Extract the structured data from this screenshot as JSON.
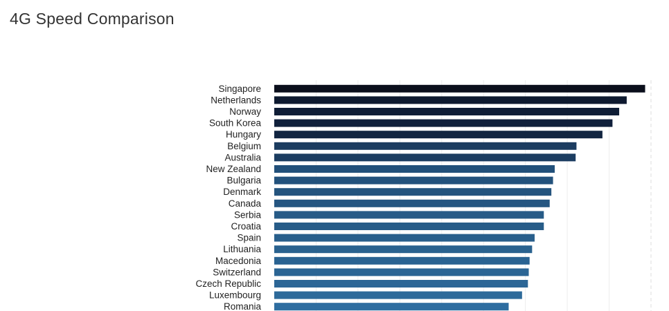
{
  "header": {
    "title": "4G Speed Comparison"
  },
  "chart_data": {
    "type": "bar",
    "orientation": "horizontal",
    "title": "4G Speed Comparison",
    "categories": [
      "Singapore",
      "Netherlands",
      "Norway",
      "South Korea",
      "Hungary",
      "Belgium",
      "Australia",
      "New Zealand",
      "Bulgaria",
      "Denmark",
      "Canada",
      "Serbia",
      "Croatia",
      "Spain",
      "Lithuania",
      "Macedonia",
      "Switzerland",
      "Czech Republic",
      "Luxembourg",
      "Romania"
    ],
    "values": [
      44.3,
      42.1,
      41.2,
      40.4,
      39.2,
      36.1,
      36.0,
      33.5,
      33.3,
      33.1,
      32.9,
      32.2,
      32.2,
      31.1,
      30.8,
      30.5,
      30.4,
      30.3,
      29.6,
      28.0
    ],
    "xlabel": "",
    "ylabel": "",
    "xlim": [
      0,
      45
    ],
    "grid": true,
    "colors": [
      "#0b0f1c",
      "#0e1a30",
      "#0f1d36",
      "#10203b",
      "#122541",
      "#1c3c60",
      "#1c3d61",
      "#22507a",
      "#23527c",
      "#24547e",
      "#255681",
      "#275b87",
      "#275c88",
      "#295f8c",
      "#2a628f",
      "#2a6392",
      "#2b6594",
      "#2c6696",
      "#2d6a9a",
      "#2e6da0"
    ]
  }
}
